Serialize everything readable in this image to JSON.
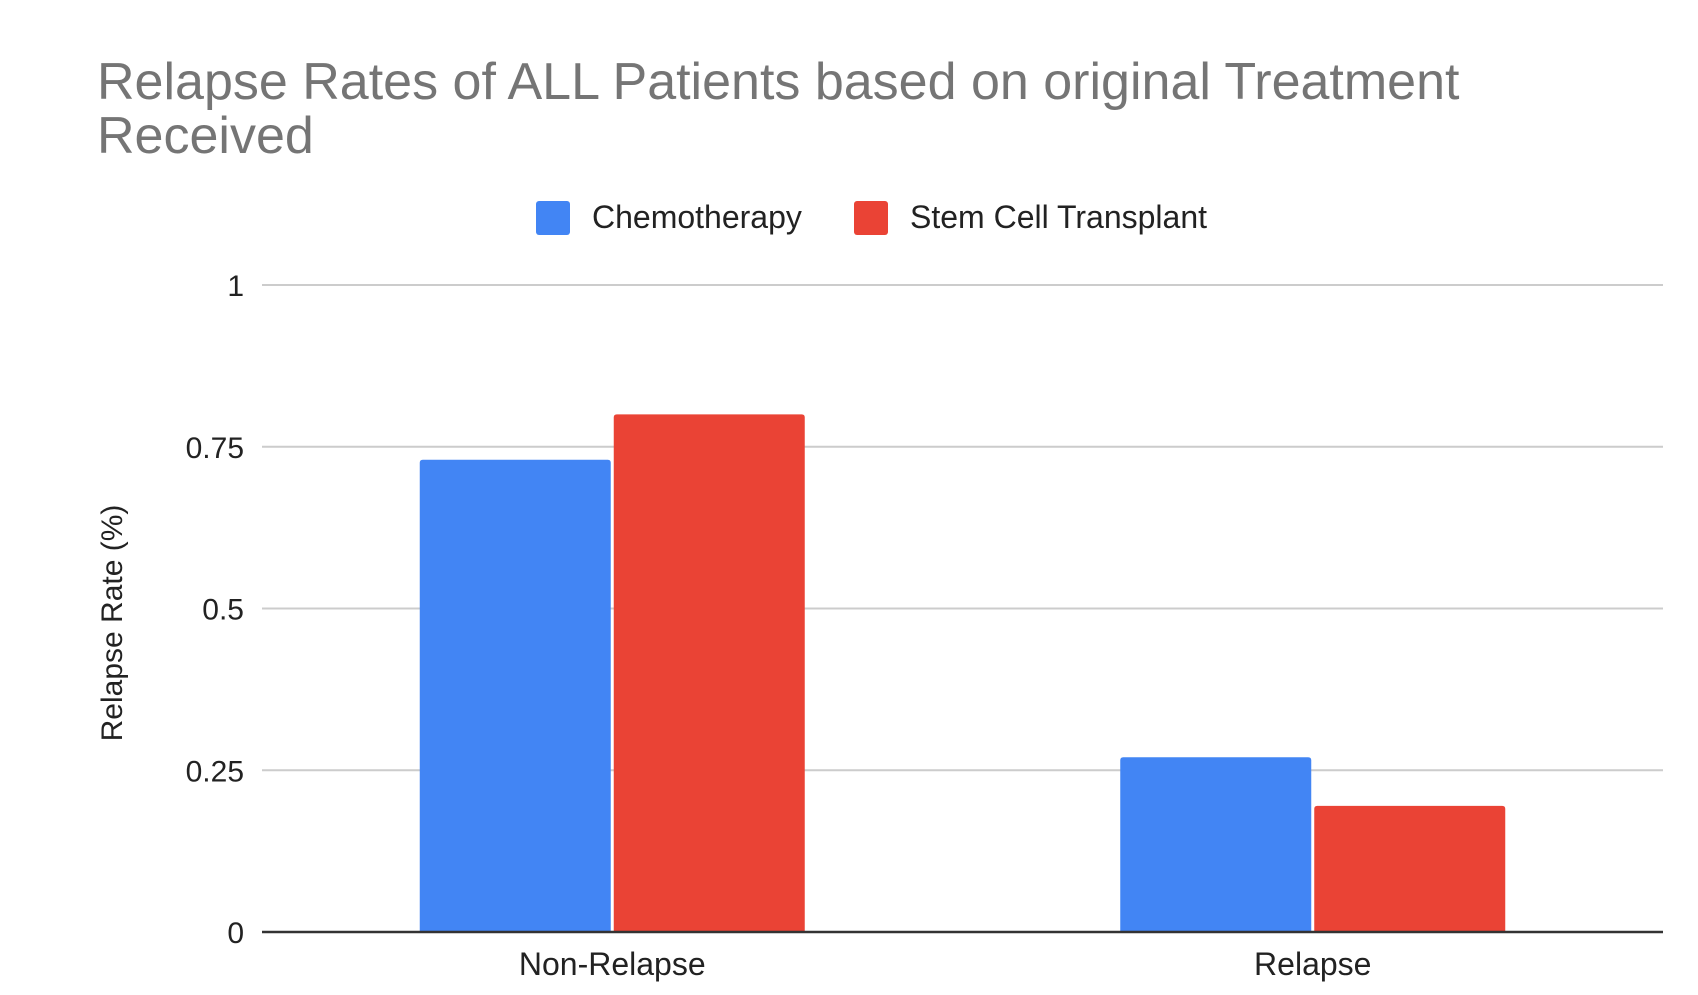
{
  "chart_data": {
    "type": "bar",
    "title_lines": [
      "Relapse Rates of ALL Patients based on original Treatment",
      "Received"
    ],
    "xlabel": "",
    "ylabel": "Relapse Rate (%)",
    "categories": [
      "Non-Relapse",
      "Relapse"
    ],
    "series": [
      {
        "name": "Chemotherapy",
        "color": "#4285F4",
        "values": [
          0.73,
          0.27
        ]
      },
      {
        "name": "Stem Cell Transplant",
        "color": "#EA4335",
        "values": [
          0.8,
          0.195
        ]
      }
    ],
    "ylim": [
      0,
      1
    ],
    "yticks": [
      0,
      0.25,
      0.5,
      0.75,
      1
    ],
    "ytick_labels": [
      "0",
      "0.25",
      "0.5",
      "0.75",
      "1"
    ],
    "grid": true,
    "legend_position": "top"
  },
  "colors": {
    "title": "#757575",
    "text": "#222222",
    "grid": "#cccccc",
    "axis": "#333333"
  }
}
